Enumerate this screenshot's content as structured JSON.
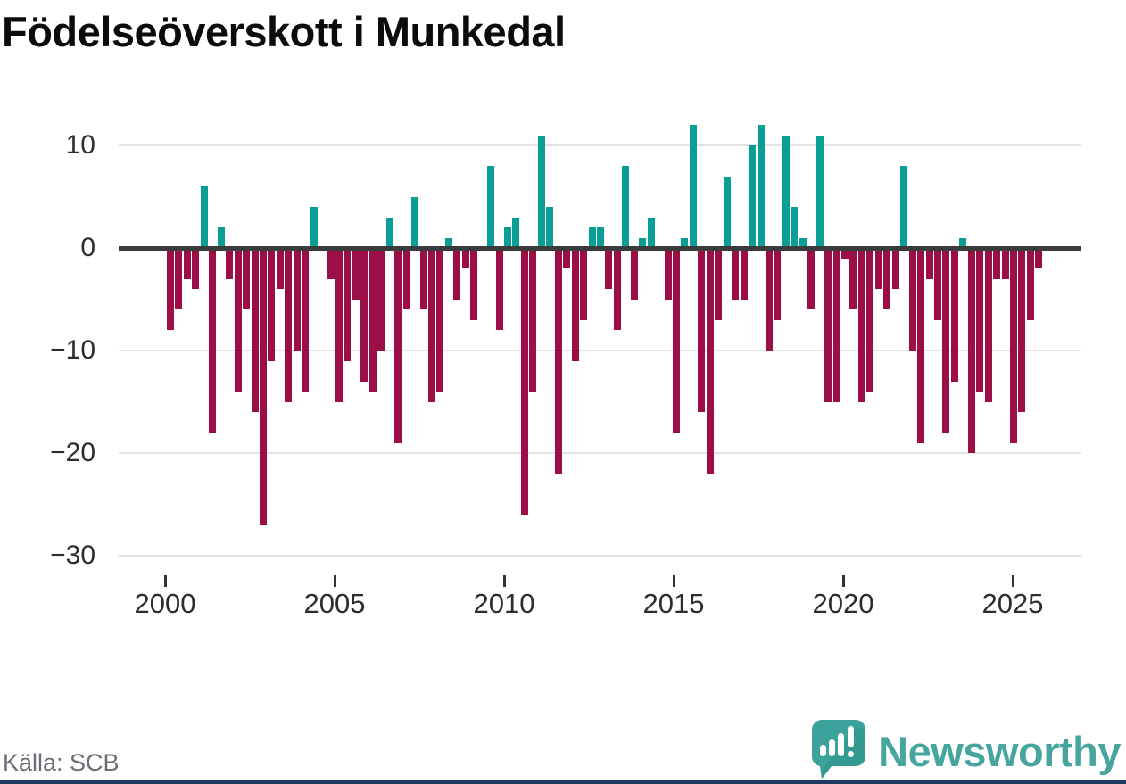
{
  "title": "Födelseöverskott i Munkedal",
  "source_note": "Källa: SCB",
  "brand": {
    "wordmark": "Newsworthy",
    "icon": "newsworthy-speech-bubble-chart-icon"
  },
  "colors": {
    "positive": "#0b9e94",
    "negative": "#9c0f46",
    "grid": "#e2e2e2",
    "zero_line": "#3b3b3b",
    "axis_text": "#2d2d2d",
    "source_text": "#6b6e76",
    "title_text": "#0b0b0b",
    "brand_teal": "#47a5a0",
    "logo_bubble": "#3ba39c",
    "footer_accent": "#1e3a5f"
  },
  "chart_data": {
    "type": "bar",
    "title": "Födelseöverskott i Munkedal",
    "x_start": "2000 Q1",
    "frequency": "quarterly",
    "series": [
      {
        "name": "Födelseöverskott",
        "values": [
          -8,
          -6,
          -3,
          -4,
          6,
          -18,
          2,
          -3,
          -14,
          -6,
          -16,
          -27,
          -11,
          -4,
          -15,
          -10,
          -14,
          4,
          0,
          -3,
          -15,
          -11,
          -5,
          -13,
          -14,
          -10,
          3,
          -19,
          -6,
          5,
          -6,
          -15,
          -14,
          1,
          -5,
          -2,
          -7,
          0,
          8,
          -8,
          2,
          3,
          -26,
          -14,
          11,
          4,
          -22,
          -2,
          -11,
          -7,
          2,
          2,
          -4,
          -8,
          8,
          -5,
          1,
          3,
          0,
          -5,
          -18,
          1,
          12,
          -16,
          -22,
          -7,
          7,
          -5,
          -5,
          10,
          12,
          -10,
          -7,
          11,
          4,
          1,
          -6,
          11,
          -15,
          -15,
          -1,
          -6,
          -15,
          -14,
          -4,
          -6,
          -4,
          8,
          -10,
          -19,
          -3,
          -7,
          -18,
          -13,
          1,
          -20,
          -14,
          -15,
          -3,
          -3,
          -19,
          -16,
          -7,
          -2
        ]
      }
    ],
    "y_ticks": [
      10,
      0,
      -10,
      -20,
      -30
    ],
    "y_tick_labels": [
      "10",
      "0",
      "−10",
      "−20",
      "−30"
    ],
    "x_tick_years": [
      2000,
      2005,
      2010,
      2015,
      2020,
      2025
    ],
    "x_tick_labels": [
      "2000",
      "2005",
      "2010",
      "2015",
      "2020",
      "2025"
    ],
    "ylim": [
      -32.5,
      13
    ],
    "grid": "horizontal",
    "legend": "none",
    "positive_color": "#0b9e94",
    "negative_color": "#9c0f46"
  }
}
